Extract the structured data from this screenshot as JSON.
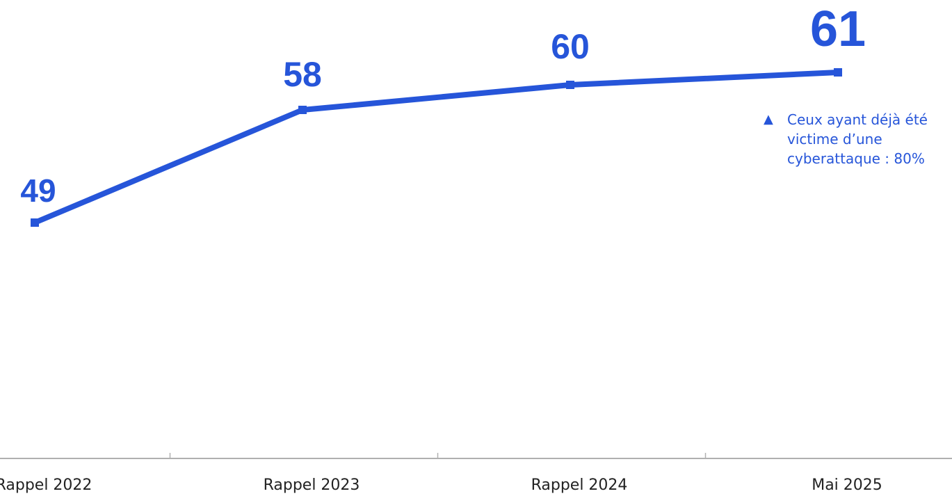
{
  "chart_data": {
    "type": "line",
    "categories": [
      "Rappel 2022",
      "Rappel 2023",
      "Rappel 2024",
      "Mai 2025"
    ],
    "values": [
      49,
      58,
      60,
      61
    ],
    "title": "",
    "xlabel": "",
    "ylabel": "",
    "ylim": [
      30,
      65
    ],
    "grid": false,
    "legend": "none",
    "color": "#2655D9"
  },
  "annotation": {
    "symbol": "▲",
    "text": "Ceux ayant déjà été\nvictime d’une\ncyberattaque : 80%"
  }
}
